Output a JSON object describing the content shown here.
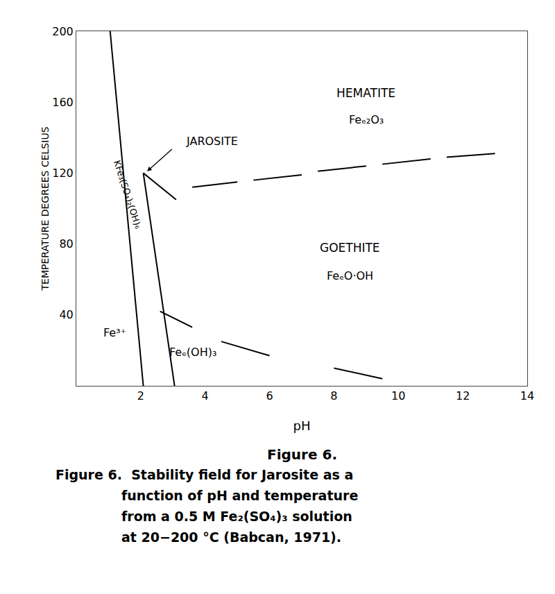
{
  "chart_data": {
    "type": "line",
    "xlabel": "pH",
    "ylabel": "TEMPERATURE DEGREES CELSIUS",
    "xlim": [
      0,
      14
    ],
    "ylim": [
      0,
      200
    ],
    "xticks": [
      2,
      4,
      6,
      8,
      10,
      12,
      14
    ],
    "yticks": [
      40,
      80,
      120,
      160,
      200
    ],
    "grid": false,
    "series": [
      {
        "color": "#000000",
        "x": [
          1.05,
          2.08
        ],
        "y": [
          200,
          0
        ]
      },
      {
        "color": "#000000",
        "x": [
          2.08,
          3.05
        ],
        "y": [
          120,
          0
        ]
      },
      {
        "color": "#000000",
        "x": [
          2.08,
          3.1
        ],
        "y": [
          120,
          105
        ]
      },
      {
        "color": "#000000",
        "x": [
          3.6,
          5.0
        ],
        "y": [
          112,
          115
        ]
      },
      {
        "color": "#000000",
        "x": [
          5.5,
          7.0
        ],
        "y": [
          116,
          119
        ]
      },
      {
        "color": "#000000",
        "x": [
          7.5,
          9.0
        ],
        "y": [
          121,
          124
        ]
      },
      {
        "color": "#000000",
        "x": [
          9.5,
          11.0
        ],
        "y": [
          125,
          128
        ]
      },
      {
        "color": "#000000",
        "x": [
          11.5,
          13.0
        ],
        "y": [
          129,
          131
        ]
      },
      {
        "color": "#000000",
        "x": [
          2.6,
          3.6
        ],
        "y": [
          42,
          33
        ]
      },
      {
        "color": "#000000",
        "x": [
          4.5,
          6.0
        ],
        "y": [
          25,
          17
        ]
      },
      {
        "color": "#000000",
        "x": [
          8.0,
          9.5
        ],
        "y": [
          10,
          4
        ]
      }
    ],
    "annotations": [
      {
        "text": "HEMATITE",
        "x": 9.0,
        "y": 165
      },
      {
        "text": "Feₑ₂O₃",
        "x": 9.0,
        "y": 150
      },
      {
        "text": "JAROSITE",
        "x": 3.35,
        "y": 138
      },
      {
        "text": "GOETHITE",
        "x": 8.5,
        "y": 78
      },
      {
        "text": "FeₑO·OH",
        "x": 8.5,
        "y": 62
      },
      {
        "text": "Fe³⁺",
        "x": 0.8,
        "y": 30
      },
      {
        "text": "Feₑ(OH)₃",
        "x": 2.85,
        "y": 19
      },
      {
        "text": "KFe₃(SO₄)₂(OH)₆",
        "x": 1.6,
        "y": 108
      }
    ],
    "arrows": [
      {
        "x0": 3.0,
        "y0": 134,
        "x1": 2.2,
        "y1": 121
      }
    ],
    "caption": [
      "Figure 6.",
      "Figure 6.  Stability field for Jarosite as a",
      "function of pH and temperature",
      "from a 0.5 M Fe₂(SO₄)₃ solution",
      "at 20−200 °C (Babcan, 1971)."
    ]
  }
}
